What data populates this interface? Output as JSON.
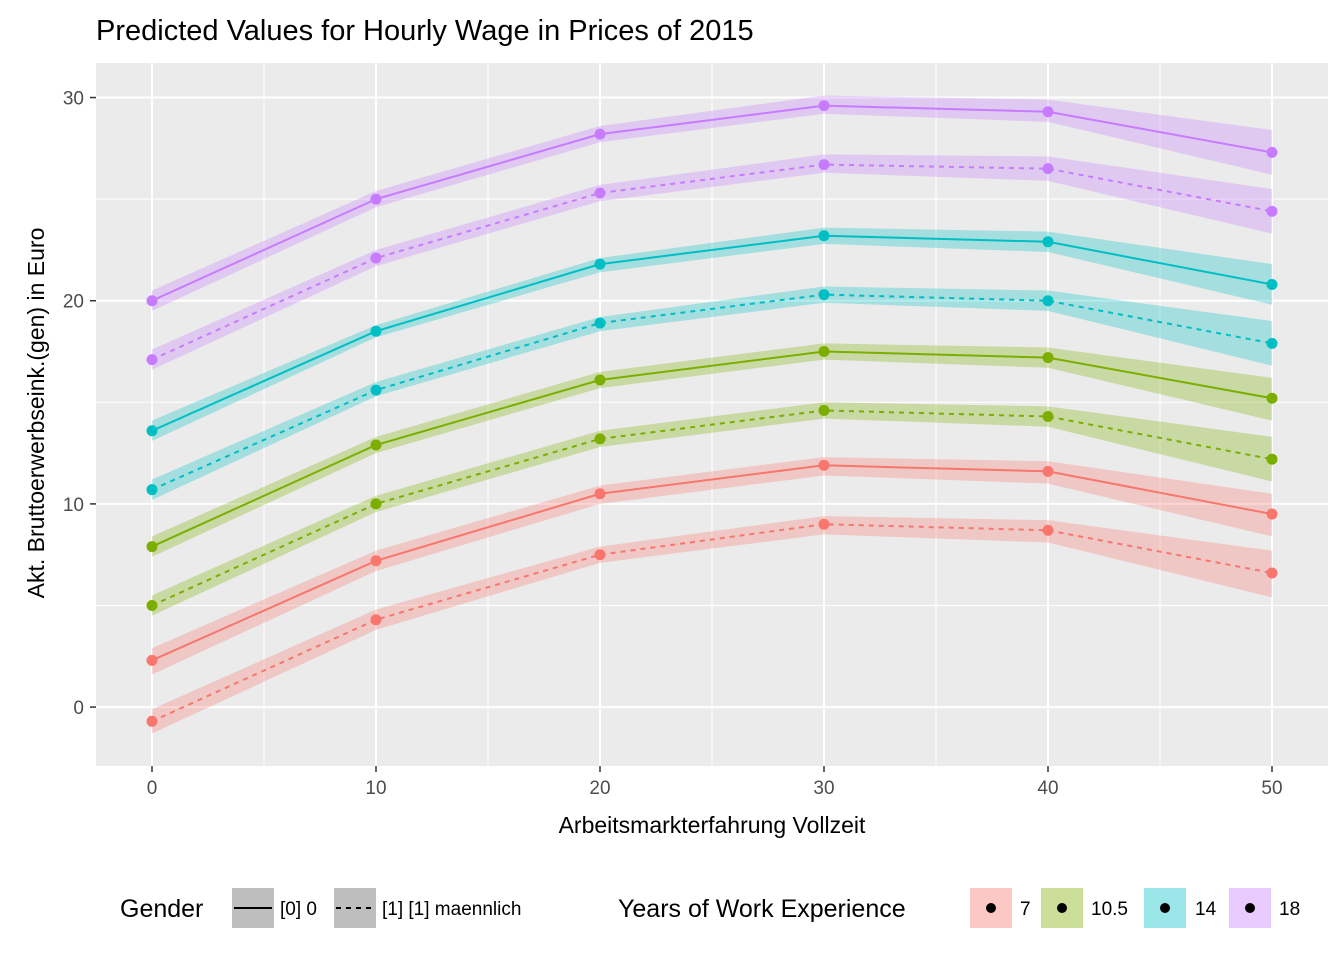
{
  "chart_data": {
    "type": "line",
    "title": "Predicted Values for Hourly Wage in Prices of 2015",
    "xlabel": "Arbeitsmarkterfahrung Vollzeit",
    "ylabel": "Akt. Bruttoerwerbseink.(gen) in Euro",
    "xlim": [
      -2.5,
      52.5
    ],
    "ylim": [
      -2.9,
      31.7
    ],
    "x_ticks": [
      0,
      10,
      20,
      30,
      40,
      50
    ],
    "y_ticks": [
      0,
      10,
      20,
      30
    ],
    "grid": true,
    "legend_position": "bottom",
    "x": [
      0,
      10,
      20,
      30,
      40,
      50
    ],
    "legends": {
      "gender": {
        "title": "Gender",
        "entries": [
          {
            "label": "[0] 0",
            "linetype": "solid"
          },
          {
            "label": "[1] [1] maennlich",
            "linetype": "dashed"
          }
        ]
      },
      "experience": {
        "title": "Years of Work Experience",
        "entries": [
          {
            "label": "7",
            "color": "#F8766D"
          },
          {
            "label": "10.5",
            "color": "#7CAE00"
          },
          {
            "label": "14",
            "color": "#00BFC4"
          },
          {
            "label": "18",
            "color": "#C77CFF"
          }
        ]
      }
    },
    "series": [
      {
        "group": "18",
        "gender": "[0] 0",
        "color": "#C77CFF",
        "linetype": "solid",
        "values": [
          20.0,
          25.0,
          28.2,
          29.6,
          29.3,
          27.3
        ],
        "lower": [
          19.5,
          24.6,
          27.8,
          29.2,
          28.8,
          26.2
        ],
        "upper": [
          20.5,
          25.4,
          28.6,
          30.1,
          29.9,
          28.4
        ]
      },
      {
        "group": "18",
        "gender": "[1] [1] maennlich",
        "color": "#C77CFF",
        "linetype": "dashed",
        "values": [
          17.1,
          22.1,
          25.3,
          26.7,
          26.5,
          24.4
        ],
        "lower": [
          16.6,
          21.7,
          24.9,
          26.3,
          25.9,
          23.3
        ],
        "upper": [
          17.6,
          22.5,
          25.7,
          27.2,
          27.1,
          25.5
        ]
      },
      {
        "group": "14",
        "gender": "[0] 0",
        "color": "#00BFC4",
        "linetype": "solid",
        "values": [
          13.6,
          18.5,
          21.8,
          23.2,
          22.9,
          20.8
        ],
        "lower": [
          13.1,
          18.2,
          21.4,
          22.8,
          22.4,
          19.8
        ],
        "upper": [
          14.1,
          18.8,
          22.1,
          23.6,
          23.4,
          21.8
        ]
      },
      {
        "group": "14",
        "gender": "[1] [1] maennlich",
        "color": "#00BFC4",
        "linetype": "dashed",
        "values": [
          10.7,
          15.6,
          18.9,
          20.3,
          20.0,
          17.9
        ],
        "lower": [
          10.2,
          15.3,
          18.5,
          19.9,
          19.5,
          16.8
        ],
        "upper": [
          11.2,
          16.0,
          19.2,
          20.7,
          20.5,
          19.0
        ]
      },
      {
        "group": "10.5",
        "gender": "[0] 0",
        "color": "#7CAE00",
        "linetype": "solid",
        "values": [
          7.9,
          12.9,
          16.1,
          17.5,
          17.2,
          15.2
        ],
        "lower": [
          7.4,
          12.5,
          15.7,
          17.1,
          16.7,
          14.1
        ],
        "upper": [
          8.4,
          13.3,
          16.5,
          17.9,
          17.7,
          16.2
        ]
      },
      {
        "group": "10.5",
        "gender": "[1] [1] maennlich",
        "color": "#7CAE00",
        "linetype": "dashed",
        "values": [
          5.0,
          10.0,
          13.2,
          14.6,
          14.3,
          12.2
        ],
        "lower": [
          4.5,
          9.6,
          12.8,
          14.2,
          13.8,
          11.1
        ],
        "upper": [
          5.5,
          10.4,
          13.6,
          15.0,
          14.8,
          13.3
        ]
      },
      {
        "group": "7",
        "gender": "[0] 0",
        "color": "#F8766D",
        "linetype": "solid",
        "values": [
          2.3,
          7.2,
          10.5,
          11.9,
          11.6,
          9.5
        ],
        "lower": [
          1.6,
          6.7,
          10.0,
          11.4,
          11.0,
          8.4
        ],
        "upper": [
          2.9,
          7.7,
          10.9,
          12.3,
          12.1,
          10.5
        ]
      },
      {
        "group": "7",
        "gender": "[1] [1] maennlich",
        "color": "#F8766D",
        "linetype": "dashed",
        "values": [
          -0.7,
          4.3,
          7.5,
          9.0,
          8.7,
          6.6
        ],
        "lower": [
          -1.3,
          3.8,
          7.1,
          8.5,
          8.1,
          5.4
        ],
        "upper": [
          -0.1,
          4.8,
          7.9,
          9.4,
          9.2,
          7.7
        ]
      }
    ]
  }
}
